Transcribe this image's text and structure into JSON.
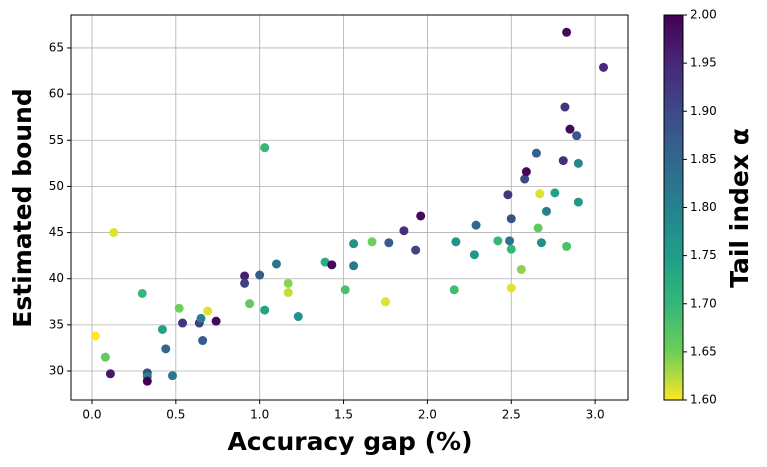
{
  "chart_data": {
    "type": "scatter",
    "xlabel": "Accuracy gap (%)",
    "ylabel": "Estimated bound",
    "colorbar_label": "Tail index α",
    "colormap": "viridis_r",
    "grid": true,
    "x": [
      0.02,
      0.08,
      0.11,
      0.13,
      0.3,
      0.33,
      0.33,
      0.33,
      0.42,
      0.44,
      0.48,
      0.52,
      0.54,
      0.64,
      0.65,
      0.66,
      0.69,
      0.74,
      0.91,
      0.91,
      0.94,
      1.0,
      1.03,
      1.03,
      1.1,
      1.17,
      1.17,
      1.23,
      1.39,
      1.43,
      1.51,
      1.56,
      1.56,
      1.67,
      1.75,
      1.77,
      1.86,
      1.93,
      1.96,
      2.16,
      2.17,
      2.28,
      2.29,
      2.42,
      2.48,
      2.49,
      2.5,
      2.5,
      2.5,
      2.56,
      2.58,
      2.59,
      2.65,
      2.66,
      2.67,
      2.68,
      2.71,
      2.76,
      2.81,
      2.82,
      2.83,
      2.83,
      2.85,
      2.89,
      2.9,
      2.9,
      3.05
    ],
    "y": [
      33.8,
      31.5,
      29.7,
      45.0,
      38.4,
      29.8,
      29.4,
      28.9,
      34.5,
      32.4,
      29.5,
      36.8,
      35.2,
      35.2,
      35.7,
      33.3,
      36.5,
      35.4,
      40.3,
      39.5,
      37.3,
      40.4,
      36.6,
      54.2,
      41.6,
      39.5,
      38.5,
      35.9,
      41.8,
      41.5,
      38.8,
      43.8,
      41.4,
      44.0,
      37.5,
      43.9,
      45.2,
      43.1,
      46.8,
      38.8,
      44.0,
      42.6,
      45.8,
      44.1,
      49.1,
      44.1,
      46.5,
      43.2,
      39.0,
      41.0,
      50.8,
      51.6,
      53.6,
      45.5,
      49.2,
      43.9,
      47.3,
      49.3,
      52.8,
      58.6,
      43.5,
      66.7,
      56.2,
      55.5,
      52.5,
      48.3,
      62.9
    ],
    "c": [
      1.6,
      1.66,
      1.97,
      1.61,
      1.7,
      1.9,
      1.8,
      2.0,
      1.74,
      1.85,
      1.82,
      1.65,
      1.93,
      1.92,
      1.8,
      1.87,
      1.61,
      1.99,
      1.96,
      1.91,
      1.66,
      1.87,
      1.74,
      1.7,
      1.83,
      1.64,
      1.62,
      1.77,
      1.72,
      1.99,
      1.68,
      1.77,
      1.82,
      1.65,
      1.61,
      1.87,
      1.94,
      1.91,
      1.99,
      1.69,
      1.77,
      1.76,
      1.85,
      1.7,
      1.93,
      1.83,
      1.89,
      1.7,
      1.61,
      1.64,
      1.9,
      1.99,
      1.86,
      1.66,
      1.61,
      1.78,
      1.81,
      1.74,
      1.94,
      1.93,
      1.68,
      1.99,
      1.99,
      1.88,
      1.79,
      1.76,
      1.95
    ],
    "xlim": [
      -0.125,
      3.196
    ],
    "ylim": [
      26.86,
      68.57
    ],
    "clim": [
      1.6,
      2.0
    ],
    "xticks": [
      {
        "value": 0,
        "label": "0.0"
      },
      {
        "value": 0.5,
        "label": "0.5"
      },
      {
        "value": 1,
        "label": "1.0"
      },
      {
        "value": 1.5,
        "label": "1.5"
      },
      {
        "value": 2,
        "label": "2.0"
      },
      {
        "value": 2.5,
        "label": "2.5"
      },
      {
        "value": 3,
        "label": "3.0"
      }
    ],
    "yticks": [
      30,
      35,
      40,
      45,
      50,
      55,
      60,
      65
    ],
    "cticks": [
      {
        "value": 1.6,
        "label": "1.60"
      },
      {
        "value": 1.65,
        "label": "1.65"
      },
      {
        "value": 1.7,
        "label": "1.70"
      },
      {
        "value": 1.75,
        "label": "1.75"
      },
      {
        "value": 1.8,
        "label": "1.80"
      },
      {
        "value": 1.85,
        "label": "1.85"
      },
      {
        "value": 1.9,
        "label": "1.90"
      },
      {
        "value": 1.95,
        "label": "1.95"
      },
      {
        "value": 2.0,
        "label": "2.00"
      }
    ]
  }
}
